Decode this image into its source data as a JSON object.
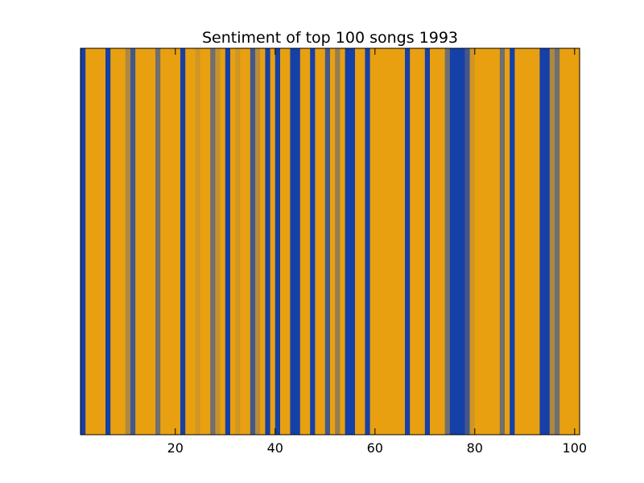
{
  "chart_data": {
    "type": "heatmap",
    "title": "Sentiment of top 100 songs 1993",
    "xlabel": "",
    "ylabel": "",
    "xlim": [
      1,
      101
    ],
    "grid": false,
    "x_ticks": [
      20,
      40,
      60,
      80,
      100
    ],
    "x_tick_labels": [
      "20",
      "40",
      "60",
      "80",
      "100"
    ],
    "colors": {
      "negative": "#1540a8",
      "neutral": "#6f6f6f",
      "positive": "#e8a010"
    },
    "sentiment_by_song": [
      -1.0,
      1.0,
      1.0,
      1.0,
      1.0,
      -1.0,
      1.0,
      1.0,
      1.0,
      0.5,
      -0.5,
      1.0,
      1.0,
      1.0,
      1.0,
      0.0,
      1.0,
      1.0,
      1.0,
      1.0,
      -1.0,
      1.0,
      1.0,
      0.8,
      1.0,
      1.0,
      0.0,
      0.7,
      1.0,
      -1.0,
      1.0,
      0.8,
      1.0,
      1.0,
      -0.5,
      0.6,
      1.0,
      -1.0,
      1.0,
      -1.0,
      1.0,
      1.0,
      -1.0,
      -1.0,
      1.0,
      1.0,
      -1.0,
      1.0,
      1.0,
      -0.5,
      1.0,
      0.3,
      1.0,
      -1.0,
      -1.0,
      1.0,
      1.0,
      -1.0,
      1.0,
      1.0,
      1.0,
      1.0,
      1.0,
      1.0,
      1.0,
      -1.0,
      1.0,
      1.0,
      1.0,
      -1.0,
      1.0,
      1.0,
      1.0,
      0.0,
      -1.0,
      -1.0,
      -1.0,
      -0.5,
      0.8,
      1.0,
      1.0,
      1.0,
      1.0,
      1.0,
      0.0,
      1.0,
      -1.0,
      1.0,
      1.0,
      1.0,
      1.0,
      1.0,
      -1.0,
      -1.0,
      0.5,
      0.0,
      1.0,
      1.0,
      1.0,
      1.0
    ]
  }
}
